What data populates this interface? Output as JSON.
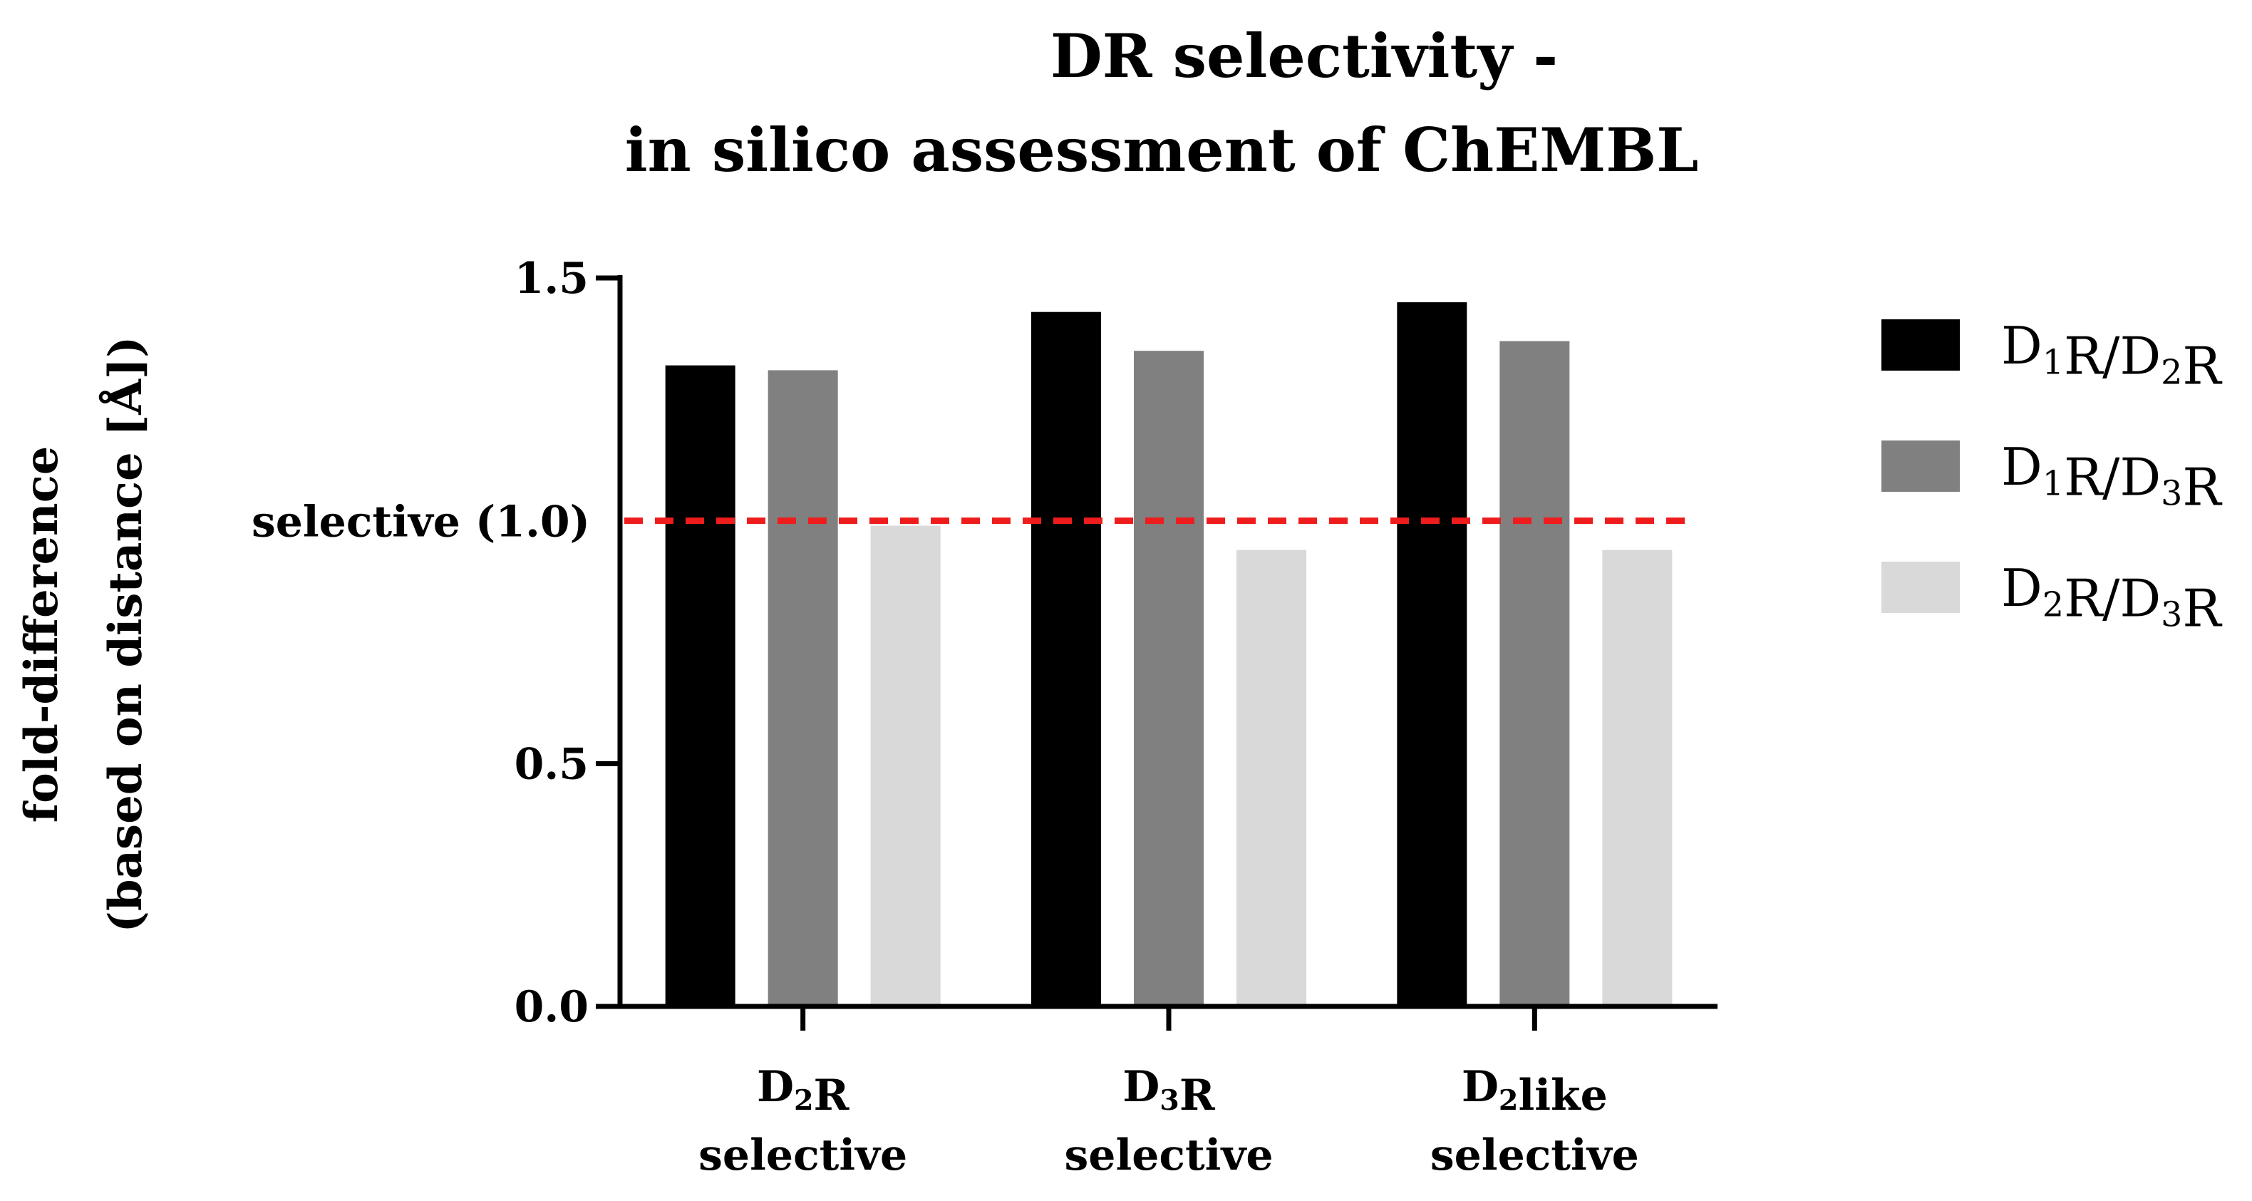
{
  "chart_data": {
    "type": "bar",
    "title": [
      "DR selectivity -",
      "in silico assessment of ChEMBL"
    ],
    "ylabel": [
      "fold-difference",
      "(based on distance [Å])"
    ],
    "xlabel": "",
    "ylim": [
      0,
      1.5
    ],
    "yticks": [
      {
        "value": 0.0,
        "label": "0.0"
      },
      {
        "value": 0.5,
        "label": "0.5"
      },
      {
        "value": 1.5,
        "label": "1.5"
      }
    ],
    "categories": [
      {
        "id": "d2r",
        "lines": [
          [
            {
              "t": "D"
            },
            {
              "t": "2",
              "sub": true
            },
            {
              "t": "R"
            }
          ],
          [
            {
              "t": "selective"
            }
          ]
        ]
      },
      {
        "id": "d3r",
        "lines": [
          [
            {
              "t": "D"
            },
            {
              "t": "3",
              "sub": true
            },
            {
              "t": "R"
            }
          ],
          [
            {
              "t": "selective"
            }
          ]
        ]
      },
      {
        "id": "d2like",
        "lines": [
          [
            {
              "t": "D"
            },
            {
              "t": "2",
              "sub": true
            },
            {
              "t": "like"
            }
          ],
          [
            {
              "t": "selective"
            }
          ]
        ]
      }
    ],
    "series": [
      {
        "id": "d1r-d2r",
        "name": "D1R/D2R",
        "label_parts": [
          {
            "t": "D"
          },
          {
            "t": "1",
            "sub": true
          },
          {
            "t": "R/D"
          },
          {
            "t": "2",
            "sub": true
          },
          {
            "t": "R"
          }
        ],
        "color": "#000000",
        "values": [
          1.32,
          1.43,
          1.45
        ]
      },
      {
        "id": "d1r-d3r",
        "name": "D1R/D3R",
        "label_parts": [
          {
            "t": "D"
          },
          {
            "t": "1",
            "sub": true
          },
          {
            "t": "R/D"
          },
          {
            "t": "3",
            "sub": true
          },
          {
            "t": "R"
          }
        ],
        "color": "#808080",
        "values": [
          1.31,
          1.35,
          1.37
        ]
      },
      {
        "id": "d2r-d3r",
        "name": "D2R/D3R",
        "label_parts": [
          {
            "t": "D"
          },
          {
            "t": "2",
            "sub": true
          },
          {
            "t": "R/D"
          },
          {
            "t": "3",
            "sub": true
          },
          {
            "t": "R"
          }
        ],
        "color": "#d9d9d9",
        "values": [
          0.99,
          0.94,
          0.94
        ]
      }
    ],
    "reference_line": {
      "value": 1.0,
      "label": "selective (1.0)",
      "color": "#ee1c1c",
      "style": "dashed"
    },
    "legend": "right",
    "grid": false
  }
}
